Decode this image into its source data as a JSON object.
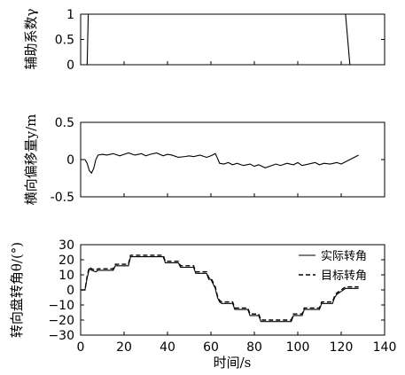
{
  "chart_data": [
    {
      "type": "line",
      "ylabel": "辅助系数γ",
      "xlim": [
        0,
        140
      ],
      "ylim": [
        0,
        1
      ],
      "yticks": [
        "0",
        "0.5",
        "1"
      ],
      "series": [
        {
          "x": [
            0,
            3,
            3.5,
            122,
            124,
            140
          ],
          "y": [
            0,
            0,
            1,
            1,
            0,
            0
          ]
        }
      ]
    },
    {
      "type": "line",
      "ylabel": "横向偏移量y/m",
      "xlim": [
        0,
        140
      ],
      "ylim": [
        -0.5,
        0.5
      ],
      "yticks": [
        "0.5",
        "0",
        "-0.5"
      ],
      "series": [
        {
          "x": [
            0,
            2,
            3,
            4,
            5,
            6,
            7,
            8,
            10,
            12,
            15,
            18,
            20,
            22,
            25,
            28,
            30,
            32,
            35,
            38,
            40,
            42,
            45,
            48,
            50,
            52,
            55,
            58,
            60,
            62,
            63,
            64,
            66,
            68,
            70,
            72,
            75,
            78,
            80,
            82,
            85,
            88,
            90,
            92,
            95,
            98,
            100,
            102,
            105,
            108,
            110,
            112,
            115,
            118,
            120,
            122,
            124,
            126,
            128
          ],
          "y": [
            0,
            0,
            -0.05,
            -0.15,
            -0.18,
            -0.12,
            0,
            0.06,
            0.07,
            0.06,
            0.08,
            0.05,
            0.07,
            0.09,
            0.06,
            0.08,
            0.05,
            0.07,
            0.09,
            0.05,
            0.07,
            0.06,
            0.03,
            0.04,
            0.05,
            0.04,
            0.06,
            0.03,
            0.05,
            0.08,
            0.02,
            -0.05,
            -0.06,
            -0.04,
            -0.07,
            -0.05,
            -0.08,
            -0.06,
            -0.09,
            -0.07,
            -0.11,
            -0.08,
            -0.06,
            -0.08,
            -0.05,
            -0.07,
            -0.04,
            -0.08,
            -0.06,
            -0.04,
            -0.07,
            -0.05,
            -0.06,
            -0.04,
            -0.06,
            -0.03,
            0,
            0.03,
            0.06
          ]
        }
      ]
    },
    {
      "type": "line",
      "ylabel": "转向盘转角θ/(°)",
      "xlabel": "时间/s",
      "xlim": [
        0,
        140
      ],
      "ylim": [
        -30,
        30
      ],
      "xticks": [
        "0",
        "20",
        "40",
        "60",
        "80",
        "100",
        "120",
        "140"
      ],
      "yticks": [
        "30",
        "20",
        "10",
        "0",
        "−10",
        "−20",
        "−30"
      ],
      "legend": [
        "实际转角",
        "目标转角"
      ],
      "legend_position": "top-right",
      "series": [
        {
          "name": "实际转角",
          "style": "solid",
          "x": [
            0,
            2,
            3,
            4,
            5,
            7,
            8,
            15,
            16,
            22,
            23,
            38,
            39,
            45,
            46,
            52,
            53,
            58,
            59,
            60,
            61,
            62,
            63,
            64,
            65,
            70,
            71,
            77,
            78,
            82,
            83,
            97,
            98,
            102,
            103,
            110,
            111,
            116,
            117,
            118,
            120,
            122,
            124,
            128
          ],
          "y": [
            0,
            0,
            8,
            14,
            13,
            12,
            13,
            13,
            16,
            16,
            22,
            22,
            18,
            18,
            15,
            15,
            11,
            11,
            7,
            7,
            4,
            1,
            -5,
            -8,
            -9,
            -9,
            -13,
            -13,
            -17,
            -17,
            -21,
            -21,
            -17,
            -17,
            -13,
            -13,
            -9,
            -9,
            -5,
            -3,
            -1,
            1,
            1,
            1
          ]
        },
        {
          "name": "目标转角",
          "style": "dashed",
          "x": [
            0,
            2,
            3,
            4,
            5,
            7,
            8,
            15,
            16,
            22,
            23,
            38,
            39,
            45,
            46,
            52,
            53,
            58,
            59,
            60,
            61,
            62,
            63,
            64,
            65,
            70,
            71,
            77,
            78,
            82,
            83,
            97,
            98,
            102,
            103,
            110,
            111,
            116,
            117,
            118,
            120,
            122,
            124,
            128
          ],
          "y": [
            0,
            0,
            9,
            15,
            14,
            13,
            14,
            14,
            17,
            17,
            23,
            23,
            19,
            19,
            16,
            16,
            12,
            12,
            8,
            8,
            5,
            2,
            -4,
            -7,
            -8,
            -8,
            -12,
            -12,
            -16,
            -16,
            -20,
            -20,
            -16,
            -16,
            -12,
            -12,
            -8,
            -8,
            -4,
            -2,
            0,
            2,
            2,
            2
          ]
        }
      ]
    }
  ]
}
